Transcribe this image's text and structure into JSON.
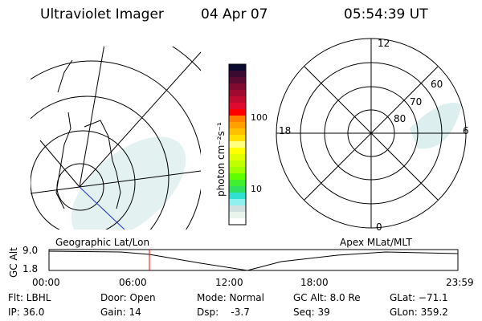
{
  "header": {
    "title": "Ultraviolet Imager",
    "date": "04 Apr 07",
    "time": "05:54:39 UT"
  },
  "colorbar": {
    "label": "photon cm⁻²s⁻¹",
    "ticks": [
      "100",
      "10"
    ],
    "colors": [
      "#0a0a30",
      "#3a0a30",
      "#5a0a30",
      "#800a30",
      "#a00a30",
      "#c00a30",
      "#e00a30",
      "#ff0000",
      "#ff8000",
      "#ffa000",
      "#ffc000",
      "#ffe000",
      "#ffff80",
      "#ffff00",
      "#e0ff00",
      "#c0ff00",
      "#a0ff00",
      "#60ff00",
      "#40f030",
      "#30e060",
      "#30e0d0",
      "#90f0f0",
      "#d0e0e0",
      "#e8f4ec",
      "#ffffff"
    ]
  },
  "polar": {
    "mlt_labels": {
      "top": "12",
      "bottom": "0",
      "left": "18",
      "right": "6"
    },
    "lat_labels": [
      "60",
      "70",
      "80"
    ]
  },
  "map_labels": {
    "left": "Geographic Lat/Lon",
    "right": "Apex MLat/MLT"
  },
  "altplot": {
    "ylabel": "GC Alt",
    "yticks": [
      "9.0",
      "1.8"
    ],
    "xticks": [
      "00:00",
      "06:00",
      "12:00",
      "18:00",
      "23:59"
    ],
    "current_time": "06:00",
    "marker_color": "#ff0000"
  },
  "info": {
    "flt": "Flt: LBHL",
    "ip": "IP: 36.0",
    "door": "Door: Open",
    "gain": "Gain: 14",
    "mode": "Mode: Normal",
    "dsp": "Dsp:    -3.7",
    "gcalt": "GC Alt: 8.0 Re",
    "seq": "Seq: 39",
    "glat": "GLat: −71.1",
    "glon": "GLon: 359.2"
  }
}
